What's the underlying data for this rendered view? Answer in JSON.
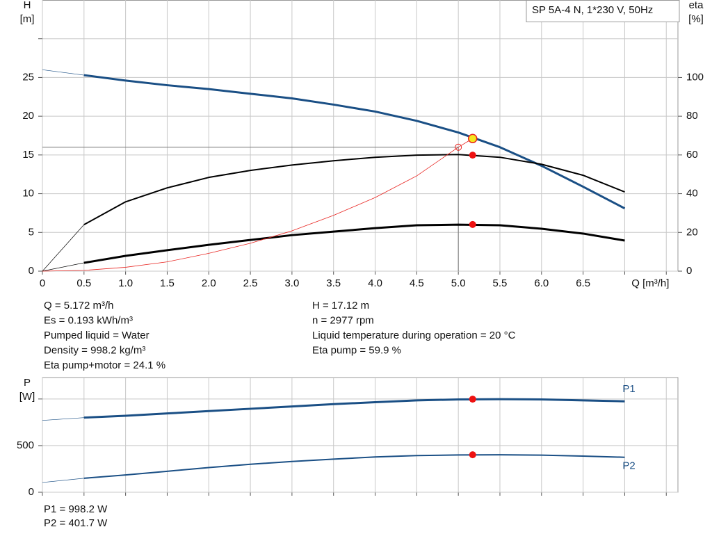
{
  "chart_data": [
    {
      "type": "line",
      "title": "SP 5A-4 N, 1*230 V, 50Hz",
      "ylabel": [
        "H",
        "[m]"
      ],
      "y2label": [
        "eta",
        "[%]"
      ],
      "xlabel": "Q [m³/h]",
      "xlim": [
        0,
        7.64
      ],
      "xticks": [
        0,
        0.5,
        {
          "value": 1,
          "label": "1.0"
        },
        1.5,
        {
          "value": 2,
          "label": "2.0"
        },
        2.5,
        {
          "value": 3,
          "label": "3.0"
        },
        3.5,
        {
          "value": 4,
          "label": "4.0"
        },
        4.5,
        {
          "value": 5,
          "label": "5.0"
        },
        5.5,
        {
          "value": 6,
          "label": "6.0"
        },
        6.5
      ],
      "x_gridlines": [
        7,
        7.5
      ],
      "ylim": [
        0,
        35
      ],
      "yticks": [
        0,
        5,
        10,
        15,
        20,
        25
      ],
      "y_gridlines": [
        30
      ],
      "y2lim": [
        0,
        140
      ],
      "y2ticks": [
        0,
        20,
        40,
        60,
        80,
        100
      ],
      "grid": true,
      "series": [
        {
          "color": "#1a4f85",
          "width": 3,
          "extension_width": 0.7,
          "x": [
            0,
            0.5,
            1,
            1.5,
            2,
            2.5,
            3,
            3.5,
            4,
            4.5,
            5,
            5.5,
            6,
            6.5,
            7
          ],
          "values": [
            26,
            25.3,
            24.6,
            24,
            23.5,
            22.9,
            22.3,
            21.5,
            20.6,
            19.4,
            17.9,
            16,
            13.6,
            10.9,
            8.1
          ],
          "point": 17.12,
          "marker_color": "#f5e61e"
        },
        {
          "color": "#000000",
          "width": 2,
          "extension_width": 0.7,
          "axis": "y2",
          "x": [
            0,
            0.5,
            1,
            1.5,
            2,
            2.5,
            3,
            3.5,
            4,
            4.5,
            5,
            5.5,
            6,
            6.5,
            7
          ],
          "values": [
            0,
            24,
            35.8,
            43,
            48.4,
            52,
            54.8,
            57,
            58.8,
            59.9,
            60.2,
            58.8,
            55.2,
            49.5,
            40.9
          ],
          "point": 59.9,
          "marker_color": "#ee1111"
        },
        {
          "color": "#000000",
          "width": 3,
          "extension_width": 0.7,
          "axis": "y2",
          "x": [
            0,
            0.5,
            1,
            1.5,
            2,
            2.5,
            3,
            3.5,
            4,
            4.5,
            5,
            5.5,
            6,
            6.5,
            7
          ],
          "values": [
            0,
            4.3,
            7.9,
            10.8,
            13.6,
            16.1,
            18.6,
            20.4,
            22.2,
            23.7,
            24,
            23.7,
            21.9,
            19.4,
            15.8
          ],
          "point": 24.1,
          "marker_color": "#ee1111"
        },
        {
          "color": "#e8231f",
          "width": 0.8,
          "x": [
            0,
            0.5,
            1,
            1.5,
            2,
            2.5,
            3,
            3.5,
            4,
            4.5,
            5,
            5.172
          ],
          "values": [
            0,
            0.1,
            0.5,
            1.2,
            2.3,
            3.6,
            5.2,
            7.2,
            9.5,
            12.3,
            16,
            17.12
          ]
        }
      ],
      "operating_q": 5.172,
      "setpoint": {
        "x": 5,
        "y": 16
      }
    },
    {
      "type": "line",
      "ylabel": [
        "P",
        "[W]"
      ],
      "xlim": [
        0,
        7.64
      ],
      "x_gridlines": [
        0,
        0.5,
        1,
        1.5,
        2,
        2.5,
        3,
        3.5,
        4,
        4.5,
        5,
        5.5,
        6,
        6.5,
        7,
        7.5
      ],
      "ylim": [
        0,
        1230
      ],
      "yticks": [
        0,
        500
      ],
      "y_gridlines": [
        1000
      ],
      "grid": true,
      "series": [
        {
          "name": "P1",
          "color": "#1a4f85",
          "width": 3,
          "extension_width": 0.7,
          "x": [
            0,
            0.5,
            1,
            1.5,
            2,
            2.5,
            3,
            3.5,
            4,
            4.5,
            5,
            5.5,
            6,
            6.5,
            7
          ],
          "values": [
            770,
            800,
            820,
            845,
            870,
            895,
            920,
            945,
            965,
            985,
            995,
            998,
            995,
            985,
            975
          ],
          "point": 998.2,
          "marker_color": "#ee1111"
        },
        {
          "name": "P2",
          "color": "#1a4f85",
          "width": 2,
          "extension_width": 0.7,
          "x": [
            0,
            0.5,
            1,
            1.5,
            2,
            2.5,
            3,
            3.5,
            4,
            4.5,
            5,
            5.5,
            6,
            6.5,
            7
          ],
          "values": [
            105,
            150,
            185,
            225,
            265,
            300,
            330,
            355,
            378,
            393,
            400,
            402,
            398,
            388,
            375
          ],
          "point": 401.7,
          "marker_color": "#ee1111"
        }
      ],
      "operating_q": 5.172
    }
  ],
  "readout": {
    "left": [
      "Q = 5.172 m³/h",
      "Es = 0.193 kWh/m³",
      "Pumped liquid = Water",
      "Density = 998.2 kg/m³",
      "Eta pump+motor = 24.1 %"
    ],
    "right": [
      "H = 17.12 m",
      "n = 2977 rpm",
      "Liquid temperature during operation = 20 °C",
      "Eta pump = 59.9 %"
    ],
    "bottom": [
      "P1 = 998.2 W",
      "P2 = 401.7 W"
    ]
  }
}
